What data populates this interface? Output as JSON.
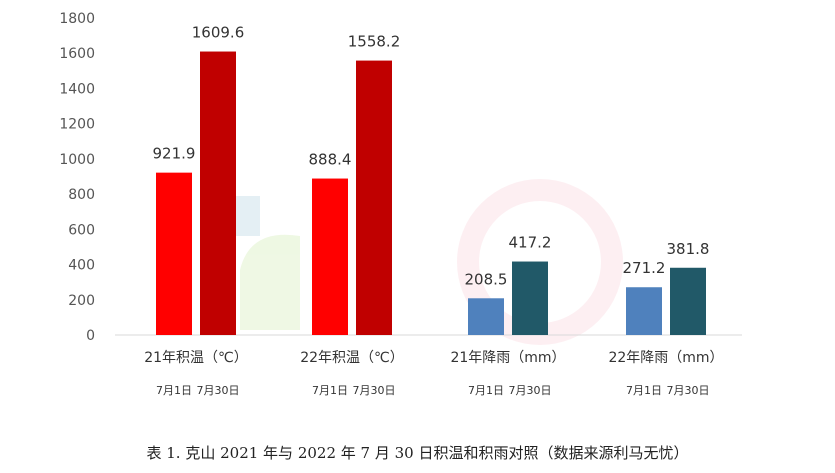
{
  "chart_data": {
    "type": "bar",
    "title": "",
    "xlabel": "",
    "ylabel": "",
    "ylim": [
      0,
      1800
    ],
    "yticks": [
      0,
      200,
      400,
      600,
      800,
      1000,
      1200,
      1400,
      1600,
      1800
    ],
    "grid": false,
    "legend": "none",
    "groups": [
      {
        "label": "21年积温（℃）",
        "sublabels": [
          "7月1日",
          "7月30日"
        ],
        "values": [
          921.9,
          1609.6
        ],
        "value_labels": [
          "921.9",
          "1609.6"
        ],
        "colors": [
          "#ff0000",
          "#c00000"
        ]
      },
      {
        "label": "22年积温（℃）",
        "sublabels": [
          "7月1日",
          "7月30日"
        ],
        "values": [
          888.4,
          1558.2
        ],
        "value_labels": [
          "888.4",
          "1558.2"
        ],
        "colors": [
          "#ff0000",
          "#c00000"
        ]
      },
      {
        "label": "21年降雨（mm）",
        "sublabels": [
          "7月1日",
          "7月30日"
        ],
        "values": [
          208.5,
          417.2
        ],
        "value_labels": [
          "208.5",
          "417.2"
        ],
        "colors": [
          "#4f81bd",
          "#215968"
        ]
      },
      {
        "label": "22年降雨（mm）",
        "sublabels": [
          "7月1日",
          "7月30日"
        ],
        "values": [
          271.2,
          381.8
        ],
        "value_labels": [
          "271.2",
          "381.8"
        ],
        "colors": [
          "#4f81bd",
          "#215968"
        ]
      }
    ]
  },
  "caption": "表 1. 克山 2021 年与 2022 年 7 月 30 日积温和积雨对照（数据来源利马无忧）"
}
